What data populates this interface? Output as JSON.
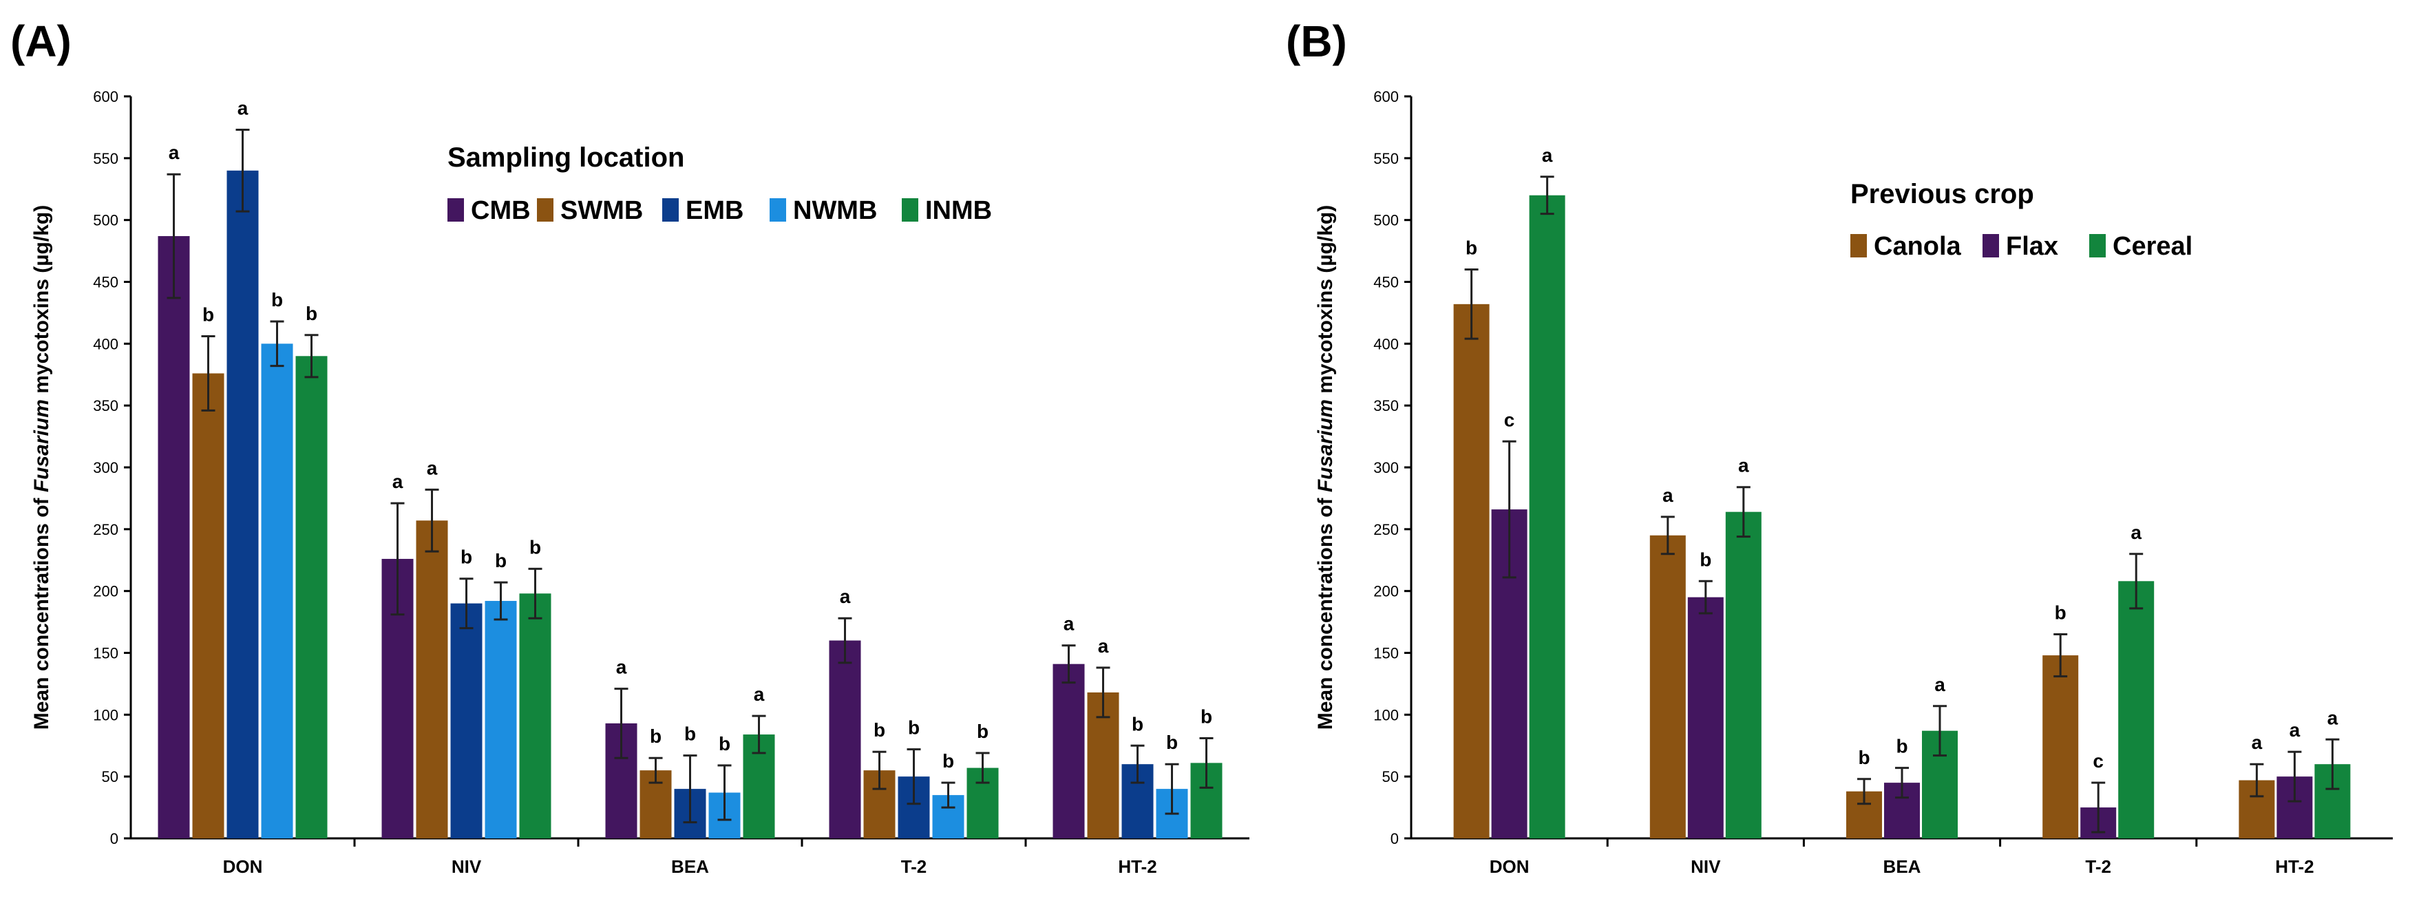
{
  "chart_data": [
    {
      "panel": "(A)",
      "type": "bar",
      "title": "",
      "ylabel_prefix": "Mean concentrations of ",
      "ylabel_italic": "Fusarium",
      "ylabel_suffix": " mycotoxins (µg/kg)",
      "xlabel": "",
      "ylim": [
        0,
        600
      ],
      "yticks": [
        0,
        50,
        100,
        150,
        200,
        250,
        300,
        350,
        400,
        450,
        500,
        550,
        600
      ],
      "categories": [
        "DON",
        "NIV",
        "BEA",
        "T-2",
        "HT-2"
      ],
      "legend_title": "Sampling location",
      "series": [
        {
          "name": "CMB",
          "color": "#43165f",
          "values": [
            487,
            226,
            93,
            160,
            141
          ],
          "errors": [
            50,
            45,
            28,
            18,
            15
          ],
          "labels": [
            "a",
            "a",
            "a",
            "a",
            "a"
          ]
        },
        {
          "name": "SWMB",
          "color": "#8b5312",
          "values": [
            376,
            257,
            55,
            55,
            118
          ],
          "errors": [
            30,
            25,
            10,
            15,
            20
          ],
          "labels": [
            "b",
            "a",
            "b",
            "b",
            "a"
          ]
        },
        {
          "name": "EMB",
          "color": "#0b3d8c",
          "values": [
            540,
            190,
            40,
            50,
            60
          ],
          "errors": [
            33,
            20,
            27,
            22,
            15
          ],
          "labels": [
            "a",
            "b",
            "b",
            "b",
            "b"
          ]
        },
        {
          "name": "NWMB",
          "color": "#1c8ee0",
          "values": [
            400,
            192,
            37,
            35,
            40
          ],
          "errors": [
            18,
            15,
            22,
            10,
            20
          ],
          "labels": [
            "b",
            "b",
            "b",
            "b",
            "b"
          ]
        },
        {
          "name": "INMB",
          "color": "#12853d",
          "values": [
            390,
            198,
            84,
            57,
            61
          ],
          "errors": [
            17,
            20,
            15,
            12,
            20
          ],
          "labels": [
            "b",
            "b",
            "a",
            "b",
            "b"
          ]
        }
      ]
    },
    {
      "panel": "(B)",
      "type": "bar",
      "title": "",
      "ylabel_prefix": "Mean concentrations of ",
      "ylabel_italic": "Fusarium",
      "ylabel_suffix": " mycotoxins (µg/kg)",
      "xlabel": "",
      "ylim": [
        0,
        600
      ],
      "yticks": [
        0,
        50,
        100,
        150,
        200,
        250,
        300,
        350,
        400,
        450,
        500,
        550,
        600
      ],
      "categories": [
        "DON",
        "NIV",
        "BEA",
        "T-2",
        "HT-2"
      ],
      "legend_title": "Previous crop",
      "series": [
        {
          "name": "Canola",
          "color": "#8b5312",
          "values": [
            432,
            245,
            38,
            148,
            47
          ],
          "errors": [
            28,
            15,
            10,
            17,
            13
          ],
          "labels": [
            "b",
            "a",
            "b",
            "b",
            "a"
          ]
        },
        {
          "name": "Flax",
          "color": "#43165f",
          "values": [
            266,
            195,
            45,
            25,
            50
          ],
          "errors": [
            55,
            13,
            12,
            20,
            20
          ],
          "labels": [
            "c",
            "b",
            "b",
            "c",
            "a"
          ]
        },
        {
          "name": "Cereal",
          "color": "#12853d",
          "values": [
            520,
            264,
            87,
            208,
            60
          ],
          "errors": [
            15,
            20,
            20,
            22,
            20
          ],
          "labels": [
            "a",
            "a",
            "a",
            "a",
            "a"
          ]
        }
      ]
    }
  ]
}
